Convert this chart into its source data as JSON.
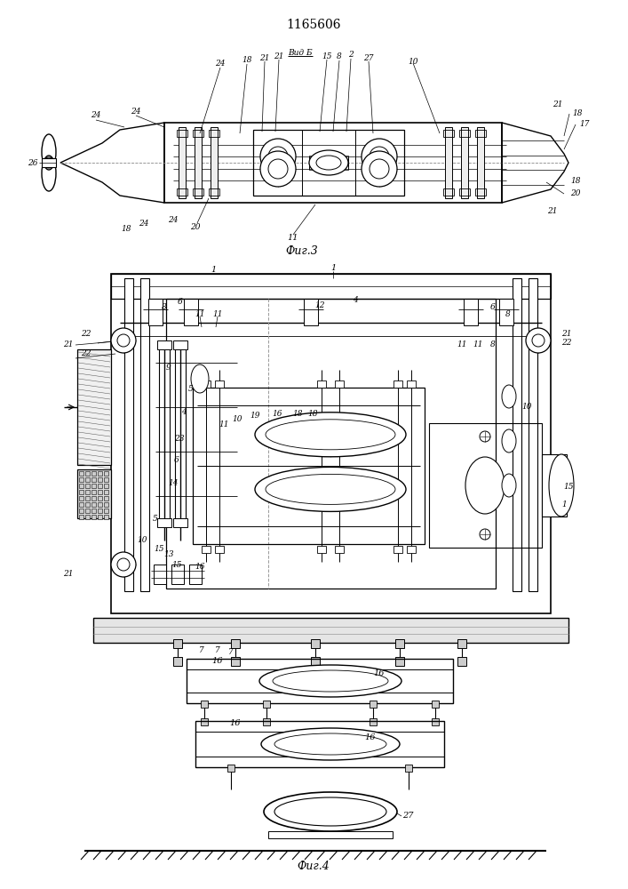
{
  "title": "1165606",
  "fig3_label": "Фиг.3",
  "fig4_label": "Фиг.4",
  "vid_b_label": "Вид Б",
  "bg_color": "#ffffff",
  "line_color": "#000000",
  "lw": 0.7,
  "fig_width": 7.07,
  "fig_height": 10.0,
  "dpi": 100
}
